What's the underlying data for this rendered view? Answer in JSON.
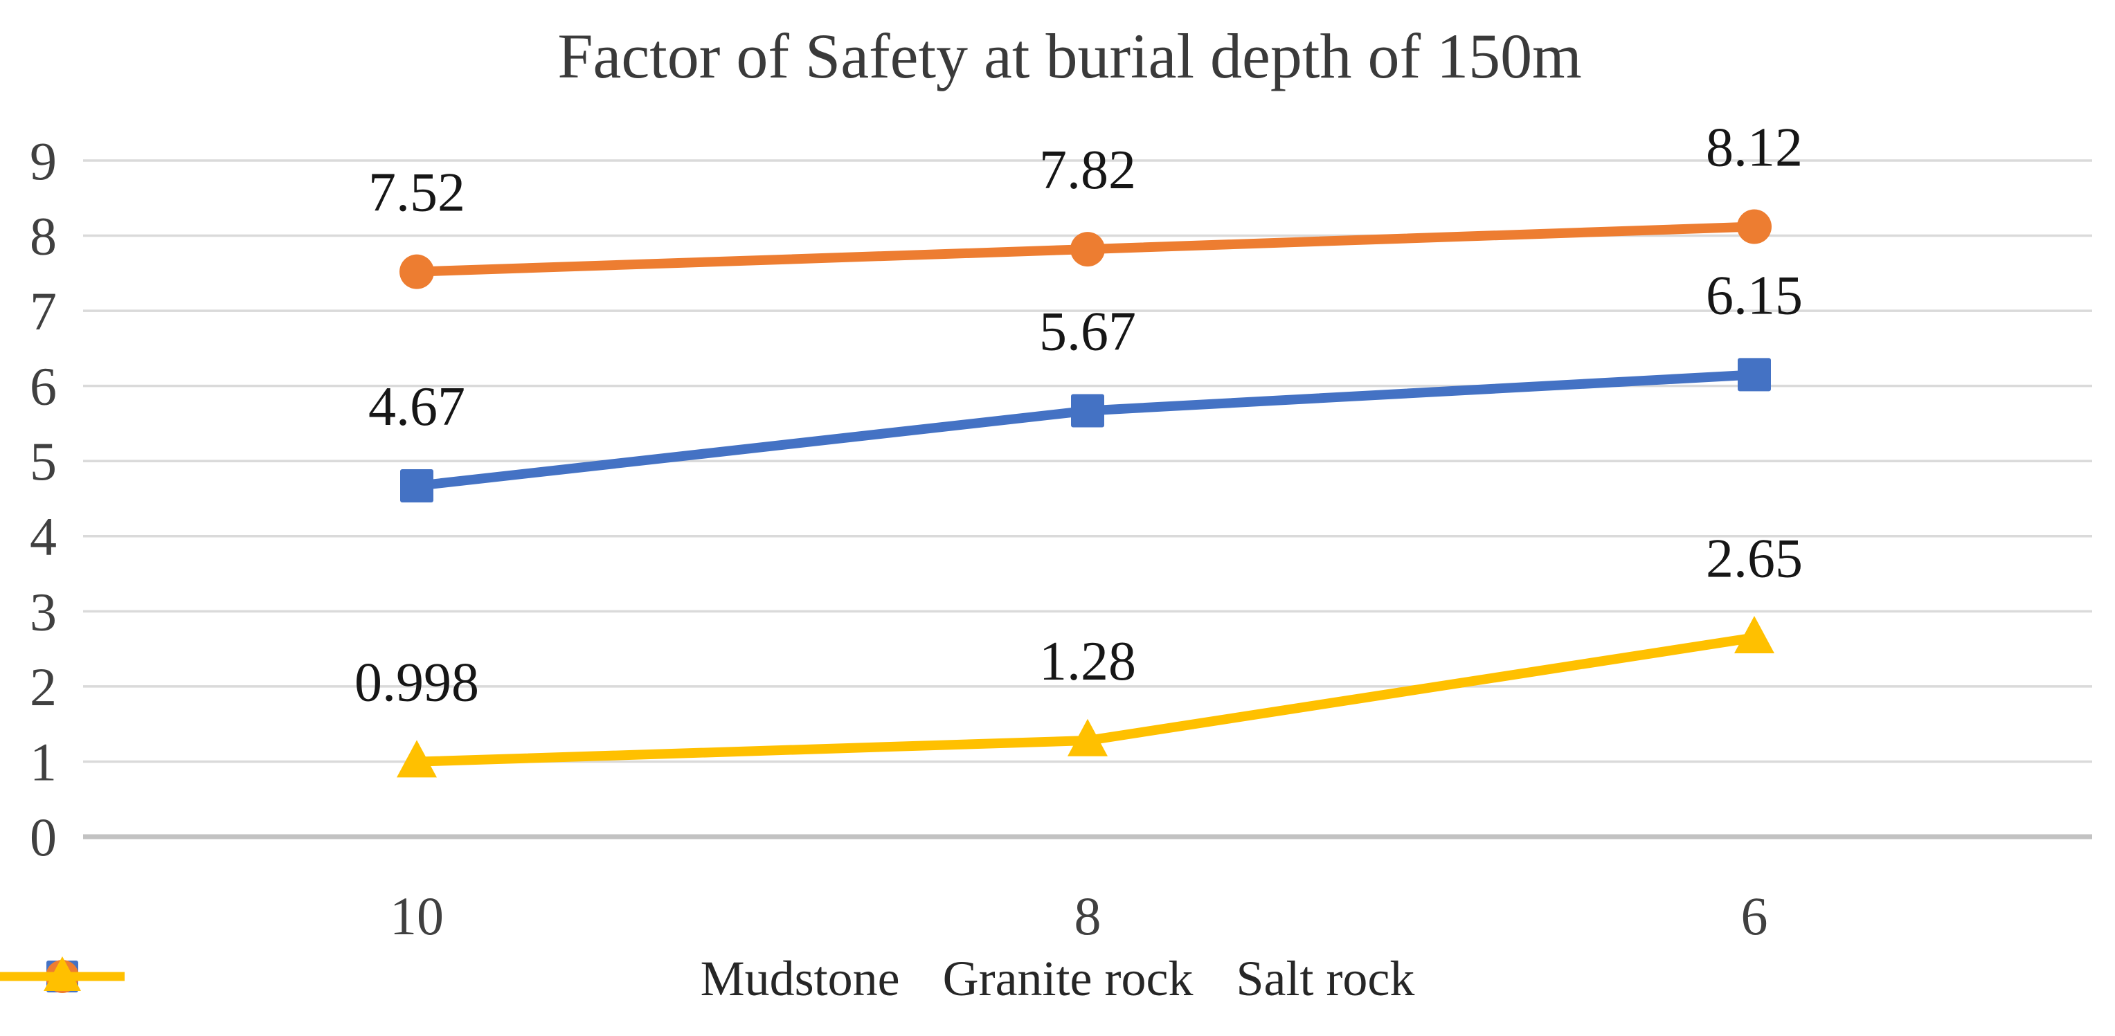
{
  "page": {
    "background_color": "#ffffff"
  },
  "chart_data": {
    "type": "line",
    "title": "Factor of Safety at burial depth of 150m",
    "categories": [
      "10",
      "8",
      "6"
    ],
    "series": [
      {
        "name": "Mudstone",
        "color": "#4472C4",
        "marker": "square",
        "values": [
          4.67,
          5.67,
          6.15
        ],
        "data_labels": [
          "4.67",
          "5.67",
          "6.15"
        ]
      },
      {
        "name": "Granite rock",
        "color": "#ED7D31",
        "marker": "circle",
        "values": [
          7.52,
          7.82,
          8.12
        ],
        "data_labels": [
          "7.52",
          "7.82",
          "8.12"
        ]
      },
      {
        "name": "Salt rock",
        "color": "#FFC000",
        "marker": "triangle",
        "values": [
          0.998,
          1.28,
          2.65
        ],
        "data_labels": [
          "0.998",
          "1.28",
          "2.65"
        ]
      }
    ],
    "xlabel": "",
    "ylabel": "",
    "ylim": [
      0,
      9
    ],
    "yticks": [
      0,
      1,
      2,
      3,
      4,
      5,
      6,
      7,
      8,
      9
    ],
    "grid": true,
    "legend_position": "bottom",
    "style": {
      "gridline_color": "#DADADA",
      "axisline_color": "#C2C2C2",
      "tick_text_color": "#404040",
      "data_label_color": "#161616",
      "title_color": "#3a3a3a"
    }
  }
}
